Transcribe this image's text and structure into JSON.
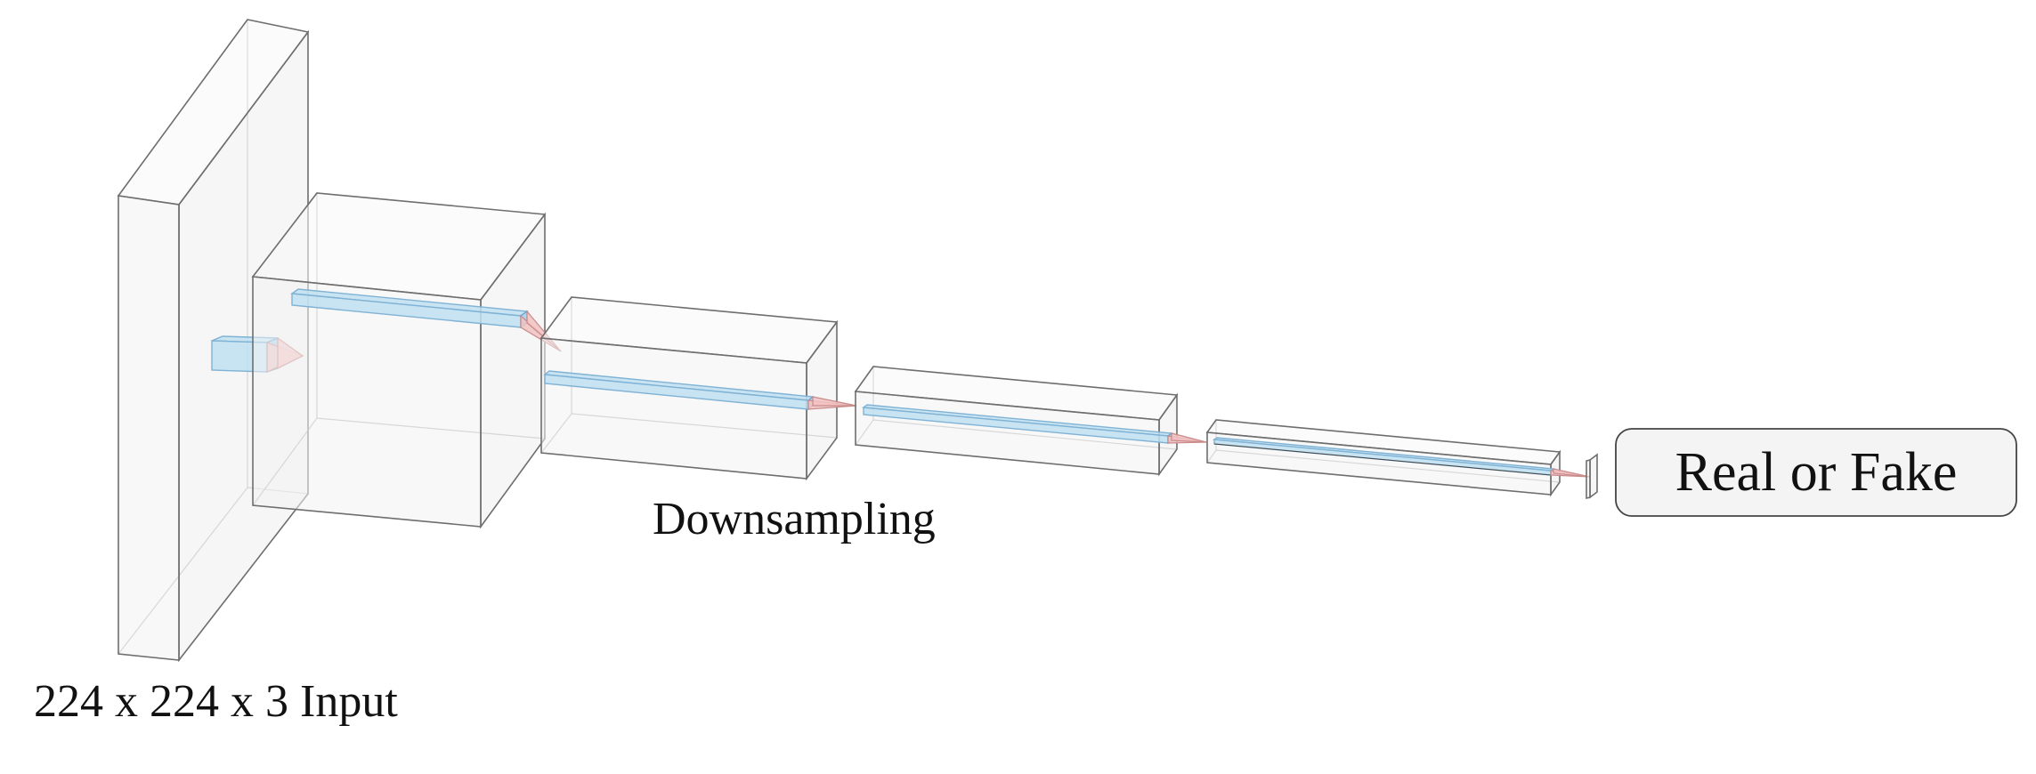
{
  "labels": {
    "input": "224 x 224 x 3 Input",
    "downsampling": "Downsampling",
    "output": "Real or Fake"
  },
  "colors": {
    "block_fill": "#f3f3f3",
    "block_edge": "#6e6e6e",
    "kernel_blue": "#bfe0f2",
    "cone_pink": "#f2c2c2"
  }
}
